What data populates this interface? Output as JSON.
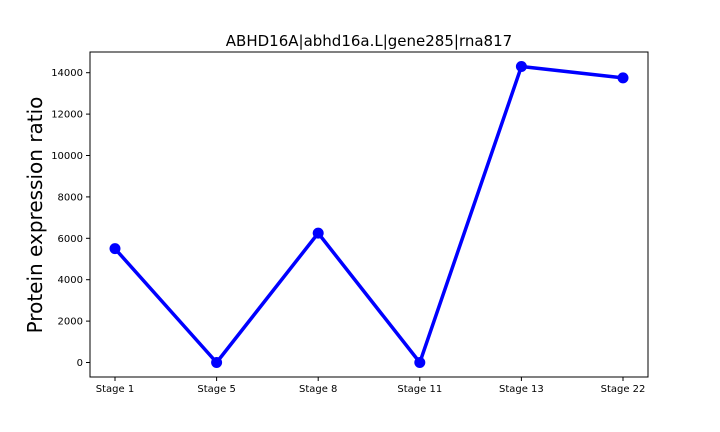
{
  "chart_data": {
    "type": "line",
    "title": "ABHD16A|abhd16a.L|gene285|rna817",
    "xlabel": "",
    "ylabel": "Protein expression ratio",
    "categories": [
      "Stage 1",
      "Stage 5",
      "Stage 8",
      "Stage 11",
      "Stage 13",
      "Stage 22"
    ],
    "series": [
      {
        "values": [
          5500,
          0,
          6250,
          0,
          14300,
          13750
        ]
      }
    ],
    "yticks": [
      "0",
      "2000",
      "4000",
      "6000",
      "8000",
      "10000",
      "12000",
      "14000"
    ],
    "ylim": [
      -700,
      15000
    ],
    "grid": false,
    "color": "#0000ff"
  }
}
